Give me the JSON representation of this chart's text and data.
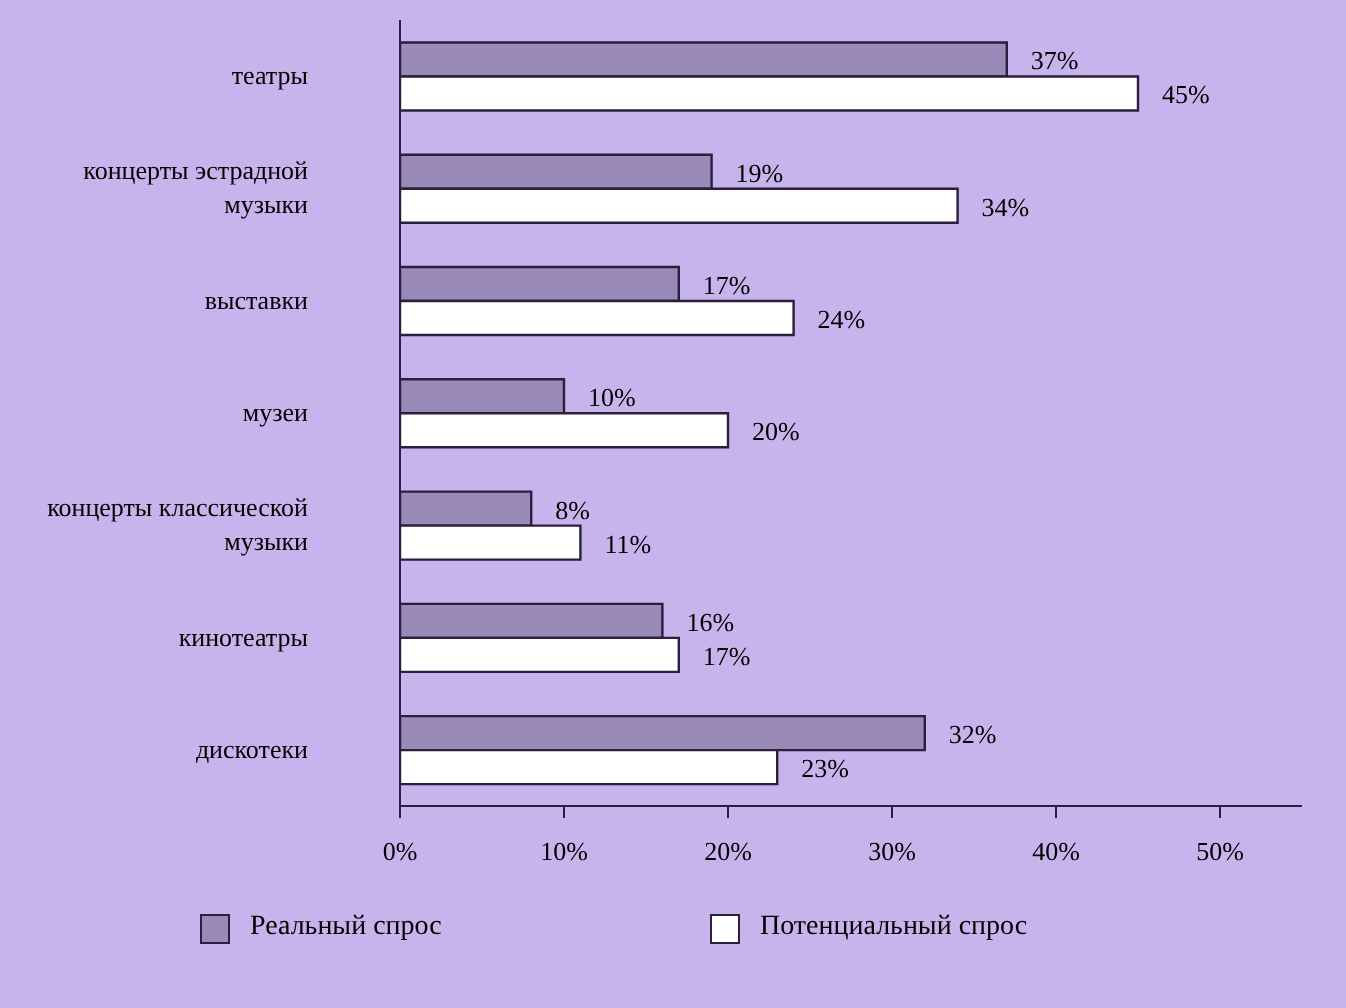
{
  "chart_data": {
    "type": "bar",
    "orientation": "horizontal",
    "categories": [
      "театры",
      "концерты эстрадной музыки",
      "выставки",
      "музеи",
      "концерты классической музыки",
      "кинотеатры",
      "дискотеки"
    ],
    "series": [
      {
        "name": "Реальный спрос",
        "color": "#9a8ab8",
        "values": [
          37,
          19,
          17,
          10,
          8,
          16,
          32
        ],
        "value_labels": [
          "37%",
          "19%",
          "17%",
          "10%",
          "8%",
          "16%",
          "32%"
        ]
      },
      {
        "name": "Потенциальный спрос",
        "color": "#ffffff",
        "values": [
          45,
          34,
          24,
          20,
          11,
          17,
          23
        ],
        "value_labels": [
          "45%",
          "34%",
          "24%",
          "20%",
          "11%",
          "17%",
          "23%"
        ]
      }
    ],
    "xlim": [
      0,
      55
    ],
    "xticks": [
      {
        "value": 0,
        "label": "0%"
      },
      {
        "value": 10,
        "label": "10%"
      },
      {
        "value": 20,
        "label": "20%"
      },
      {
        "value": 30,
        "label": "30%"
      },
      {
        "value": 40,
        "label": "40%"
      },
      {
        "value": 50,
        "label": "50%"
      }
    ],
    "grid": false,
    "legend": "bottom"
  }
}
